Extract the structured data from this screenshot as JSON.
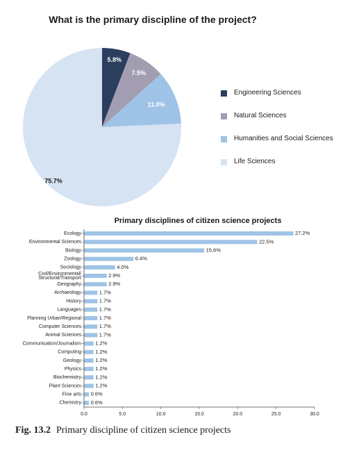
{
  "caption": {
    "label": "Fig. 13.2",
    "text": "Primary discipline of citizen science projects"
  },
  "chart_data": [
    {
      "type": "pie",
      "title": "What is the primary discipline of the project?",
      "legend": "right",
      "slices": [
        {
          "label": "Engineering Sciences",
          "value": 5.8,
          "value_label": "5.8%",
          "color": "#2c3e5e"
        },
        {
          "label": "Natural Sciences",
          "value": 7.5,
          "value_label": "7.5%",
          "color": "#a39db2"
        },
        {
          "label": "Humanities and Social Sciences",
          "value": 11.0,
          "value_label": "11.0%",
          "color": "#9ec3e6"
        },
        {
          "label": "Life Sciences",
          "value": 75.7,
          "value_label": "75.7%",
          "color": "#d6e3f3"
        }
      ]
    },
    {
      "type": "bar",
      "orientation": "horizontal",
      "title": "Primary disciplines of citizen science projects",
      "bar_color": "#9ec3e6",
      "xlim": [
        0,
        30
      ],
      "xticks": [
        "0.0",
        "5.0",
        "10.0",
        "15.0",
        "20.0",
        "25.0",
        "30.0"
      ],
      "categories": [
        "Ecology",
        "Environmental Sciences",
        "Biology",
        "Zoology",
        "Sociology",
        "Civil/Environmental/ Structural/Transport",
        "Geography",
        "Archaeology",
        "History",
        "Languages",
        "Planning Urban/Regional",
        "Computer Sciences",
        "Animal Sciences",
        "Communication/Journalism",
        "Computing",
        "Geology",
        "Physics",
        "Biochemistry",
        "Plant Sciences",
        "Fine arts",
        "Chemistry"
      ],
      "values": [
        27.2,
        22.5,
        15.6,
        6.4,
        4.0,
        2.9,
        2.9,
        1.7,
        1.7,
        1.7,
        1.7,
        1.7,
        1.7,
        1.2,
        1.2,
        1.2,
        1.2,
        1.2,
        1.2,
        0.6,
        0.6
      ],
      "value_labels": [
        "27.2%",
        "22.5%",
        "15.6%",
        "6.4%",
        "4.0%",
        "2.9%",
        "2.9%",
        "1.7%",
        "1.7%",
        "1.7%",
        "1.7%",
        "1.7%",
        "1.7%",
        "1.2%",
        "1.2%",
        "1.2%",
        "1.2%",
        "1.2%",
        "1.2%",
        "0.6%",
        "0.6%"
      ]
    }
  ]
}
